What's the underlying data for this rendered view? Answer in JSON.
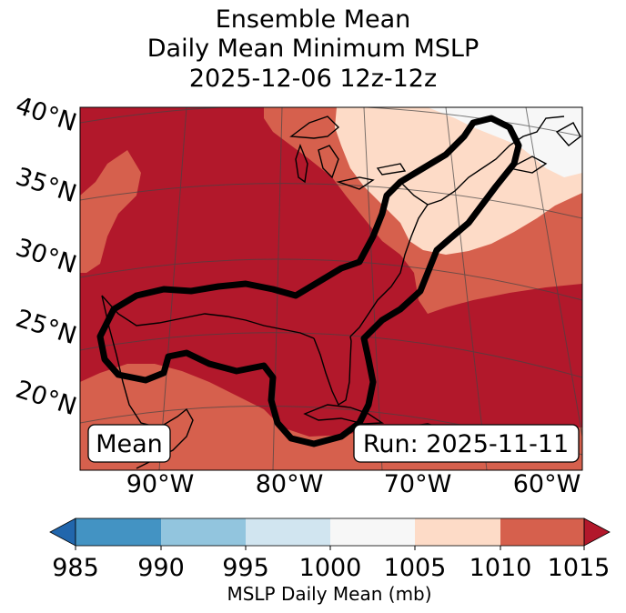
{
  "title": {
    "line1": "Ensemble Mean",
    "line2": "Daily Mean Minimum MSLP",
    "line3": "2025-12-06 12z-12z"
  },
  "map": {
    "lat_labels": [
      "40°N",
      "35°N",
      "30°N",
      "25°N",
      "20°N"
    ],
    "lon_labels": [
      "90°W",
      "80°W",
      "70°W",
      "60°W"
    ],
    "mean_label": "Mean",
    "run_label": "Run: 2025-11-11"
  },
  "colorbar": {
    "ticks": [
      "985",
      "990",
      "995",
      "1000",
      "1005",
      "1010",
      "1015"
    ],
    "label": "MSLP Daily Mean (mb)",
    "colors": [
      "#2166ac",
      "#4393c3",
      "#92c5de",
      "#d1e5f0",
      "#f7f7f7",
      "#fddbc7",
      "#d6604d",
      "#b2182b"
    ]
  },
  "colors": {
    "c1015": "#b2182b",
    "c1010": "#d6604d",
    "c1005": "#fddbc7",
    "c1000": "#f7f7f7"
  }
}
